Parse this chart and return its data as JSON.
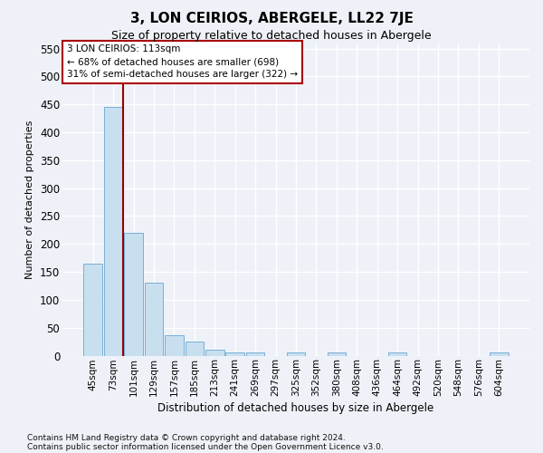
{
  "title": "3, LON CEIRIOS, ABERGELE, LL22 7JE",
  "subtitle": "Size of property relative to detached houses in Abergele",
  "xlabel": "Distribution of detached houses by size in Abergele",
  "ylabel": "Number of detached properties",
  "categories": [
    "45sqm",
    "73sqm",
    "101sqm",
    "129sqm",
    "157sqm",
    "185sqm",
    "213sqm",
    "241sqm",
    "269sqm",
    "297sqm",
    "325sqm",
    "352sqm",
    "380sqm",
    "408sqm",
    "436sqm",
    "464sqm",
    "492sqm",
    "520sqm",
    "548sqm",
    "576sqm",
    "604sqm"
  ],
  "values": [
    165,
    445,
    220,
    130,
    37,
    25,
    10,
    5,
    5,
    0,
    5,
    0,
    5,
    0,
    0,
    5,
    0,
    0,
    0,
    0,
    5
  ],
  "bar_color": "#c8dff0",
  "bar_edge_color": "#7aafd4",
  "vline_index": 1.5,
  "vline_color": "#990000",
  "annotation_line1": "3 LON CEIRIOS: 113sqm",
  "annotation_line2": "← 68% of detached houses are smaller (698)",
  "annotation_line3": "31% of semi-detached houses are larger (322) →",
  "ann_box_edge": "#aa0000",
  "ylim": [
    0,
    560
  ],
  "yticks": [
    0,
    50,
    100,
    150,
    200,
    250,
    300,
    350,
    400,
    450,
    500,
    550
  ],
  "footer_line1": "Contains HM Land Registry data © Crown copyright and database right 2024.",
  "footer_line2": "Contains public sector information licensed under the Open Government Licence v3.0.",
  "bg_color": "#eef2f8",
  "grid_color": "#ffffff",
  "title_fontsize": 11,
  "subtitle_fontsize": 9
}
